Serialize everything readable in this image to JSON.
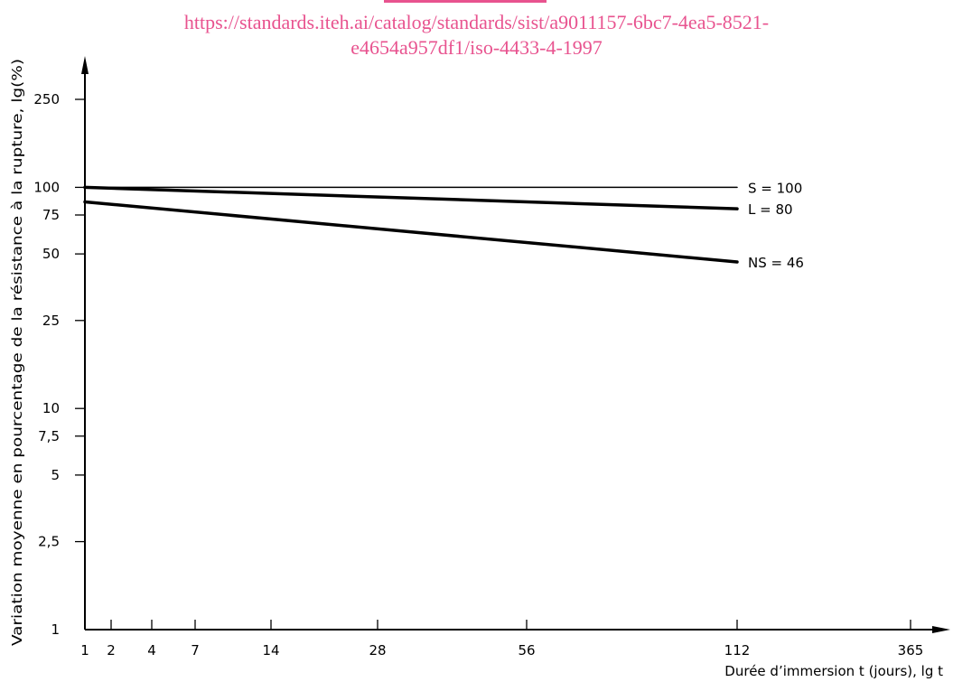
{
  "watermark": {
    "line1": "https://standards.iteh.ai/catalog/standards/sist/a9011157-6bc7-4ea5-8521-",
    "line2": "e4654a957df1/iso-4433-4-1997",
    "color": "#e8538f"
  },
  "chart_data": {
    "type": "line",
    "ylabel": "Variation moyenne en pourcentage de la résistance à la rupture, lg(%)",
    "xlabel": "Durée d’immersion t (jours), lg t",
    "x_scale": "log",
    "y_scale": "log",
    "xlim": [
      1,
      365
    ],
    "ylim": [
      1,
      250
    ],
    "x_ticks": [
      {
        "value": 1,
        "label": "1"
      },
      {
        "value": 2,
        "label": "2"
      },
      {
        "value": 4,
        "label": "4"
      },
      {
        "value": 7,
        "label": "7"
      },
      {
        "value": 14,
        "label": "14"
      },
      {
        "value": 28,
        "label": "28"
      },
      {
        "value": 56,
        "label": "56"
      },
      {
        "value": 112,
        "label": "112"
      },
      {
        "value": 365,
        "label": "365"
      }
    ],
    "y_ticks": [
      {
        "value": 1,
        "label": "1"
      },
      {
        "value": 2.5,
        "label": "2,5"
      },
      {
        "value": 5,
        "label": "5"
      },
      {
        "value": 7.5,
        "label": "7,5"
      },
      {
        "value": 10,
        "label": "10"
      },
      {
        "value": 25,
        "label": "25"
      },
      {
        "value": 50,
        "label": "50"
      },
      {
        "value": 75,
        "label": "75"
      },
      {
        "value": 100,
        "label": "100"
      },
      {
        "value": 250,
        "label": "250"
      }
    ],
    "series": [
      {
        "name": "S = 100",
        "x": [
          1,
          112
        ],
        "values": [
          100,
          100
        ],
        "weight": "thin"
      },
      {
        "name": "L = 80",
        "x": [
          1,
          112
        ],
        "values": [
          100,
          80
        ],
        "weight": "bold"
      },
      {
        "name": "NS = 46",
        "x": [
          1,
          112
        ],
        "values": [
          86,
          46
        ],
        "weight": "bold"
      }
    ],
    "grid": false,
    "legend": "inline-right"
  }
}
